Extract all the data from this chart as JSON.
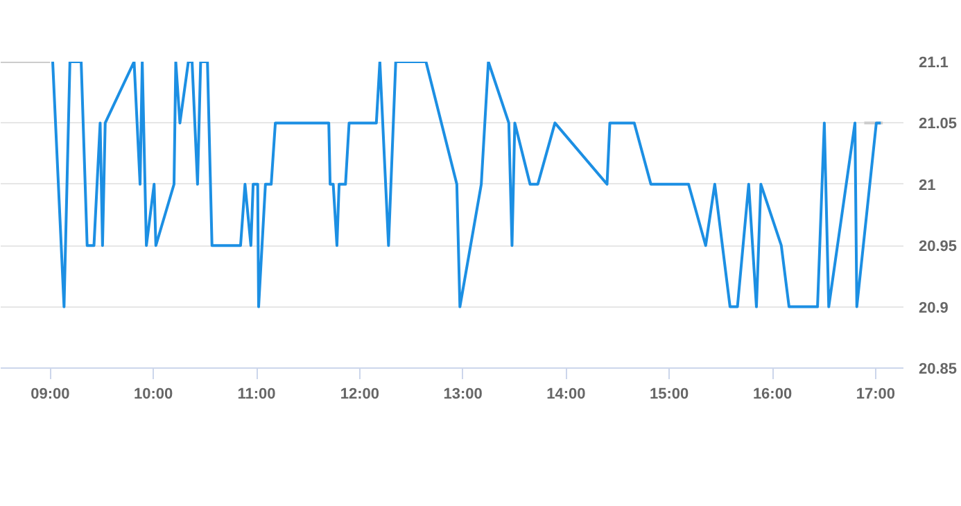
{
  "chart_data": {
    "type": "line",
    "xlim": [
      8.52,
      17.27
    ],
    "ylim": [
      20.85,
      21.1
    ],
    "xticks": [
      {
        "value": 9,
        "label": "09:00"
      },
      {
        "value": 10,
        "label": "10:00"
      },
      {
        "value": 11,
        "label": "11:00"
      },
      {
        "value": 12,
        "label": "12:00"
      },
      {
        "value": 13,
        "label": "13:00"
      },
      {
        "value": 14,
        "label": "14:00"
      },
      {
        "value": 15,
        "label": "15:00"
      },
      {
        "value": 16,
        "label": "16:00"
      },
      {
        "value": 17,
        "label": "17:00"
      }
    ],
    "yticks": [
      20.85,
      20.9,
      20.95,
      21,
      21.05,
      21.1
    ],
    "grid": "y",
    "marker": "none",
    "line_style": "solid",
    "series": [
      {
        "color": "#cccccc",
        "x": [
          8.52,
          9.0
        ],
        "values": [
          21.1,
          21.1
        ]
      },
      {
        "color": "#cccccc",
        "x": [
          16.89,
          17.07
        ],
        "values": [
          21.05,
          21.05
        ]
      },
      {
        "color": "#1c8fe3",
        "x": [
          9.024,
          9.134,
          9.191,
          9.3,
          9.358,
          9.424,
          9.484,
          9.507,
          9.533,
          9.813,
          9.871,
          9.892,
          9.932,
          10.007,
          10.024,
          10.2,
          10.217,
          10.257,
          10.339,
          10.375,
          10.428,
          10.458,
          10.524,
          10.568,
          10.845,
          10.888,
          10.945,
          10.967,
          11.011,
          11.02,
          11.086,
          11.142,
          11.182,
          11.7,
          11.713,
          11.743,
          11.779,
          11.8,
          11.862,
          11.897,
          12.161,
          12.195,
          12.279,
          12.349,
          12.642,
          12.941,
          12.971,
          13.178,
          13.247,
          13.445,
          13.476,
          13.503,
          13.651,
          13.726,
          13.892,
          14.397,
          14.424,
          14.661,
          14.822,
          15.187,
          15.353,
          15.441,
          15.589,
          15.661,
          15.77,
          15.845,
          15.888,
          16.086,
          16.161,
          16.437,
          16.503,
          16.546,
          16.8,
          16.818,
          17.007,
          17.05
        ],
        "values": [
          21.1,
          20.9,
          21.1,
          21.1,
          20.95,
          20.95,
          21.05,
          20.95,
          21.05,
          21.1,
          21,
          21.1,
          20.95,
          21,
          20.95,
          21,
          21.1,
          21.05,
          21.1,
          21.1,
          21,
          21.1,
          21.1,
          20.95,
          20.95,
          21,
          20.95,
          21,
          21,
          20.9,
          21,
          21,
          21.05,
          21.05,
          21,
          21,
          20.95,
          21,
          21,
          21.05,
          21.05,
          21.1,
          20.95,
          21.1,
          21.1,
          21,
          20.9,
          21,
          21.1,
          21.05,
          20.95,
          21.05,
          21,
          21,
          21.05,
          21,
          21.05,
          21.05,
          21,
          21,
          20.95,
          21,
          20.9,
          20.9,
          21,
          20.9,
          21,
          20.95,
          20.9,
          20.9,
          21.05,
          20.9,
          21.05,
          20.9,
          21.05,
          21.05
        ]
      }
    ]
  }
}
